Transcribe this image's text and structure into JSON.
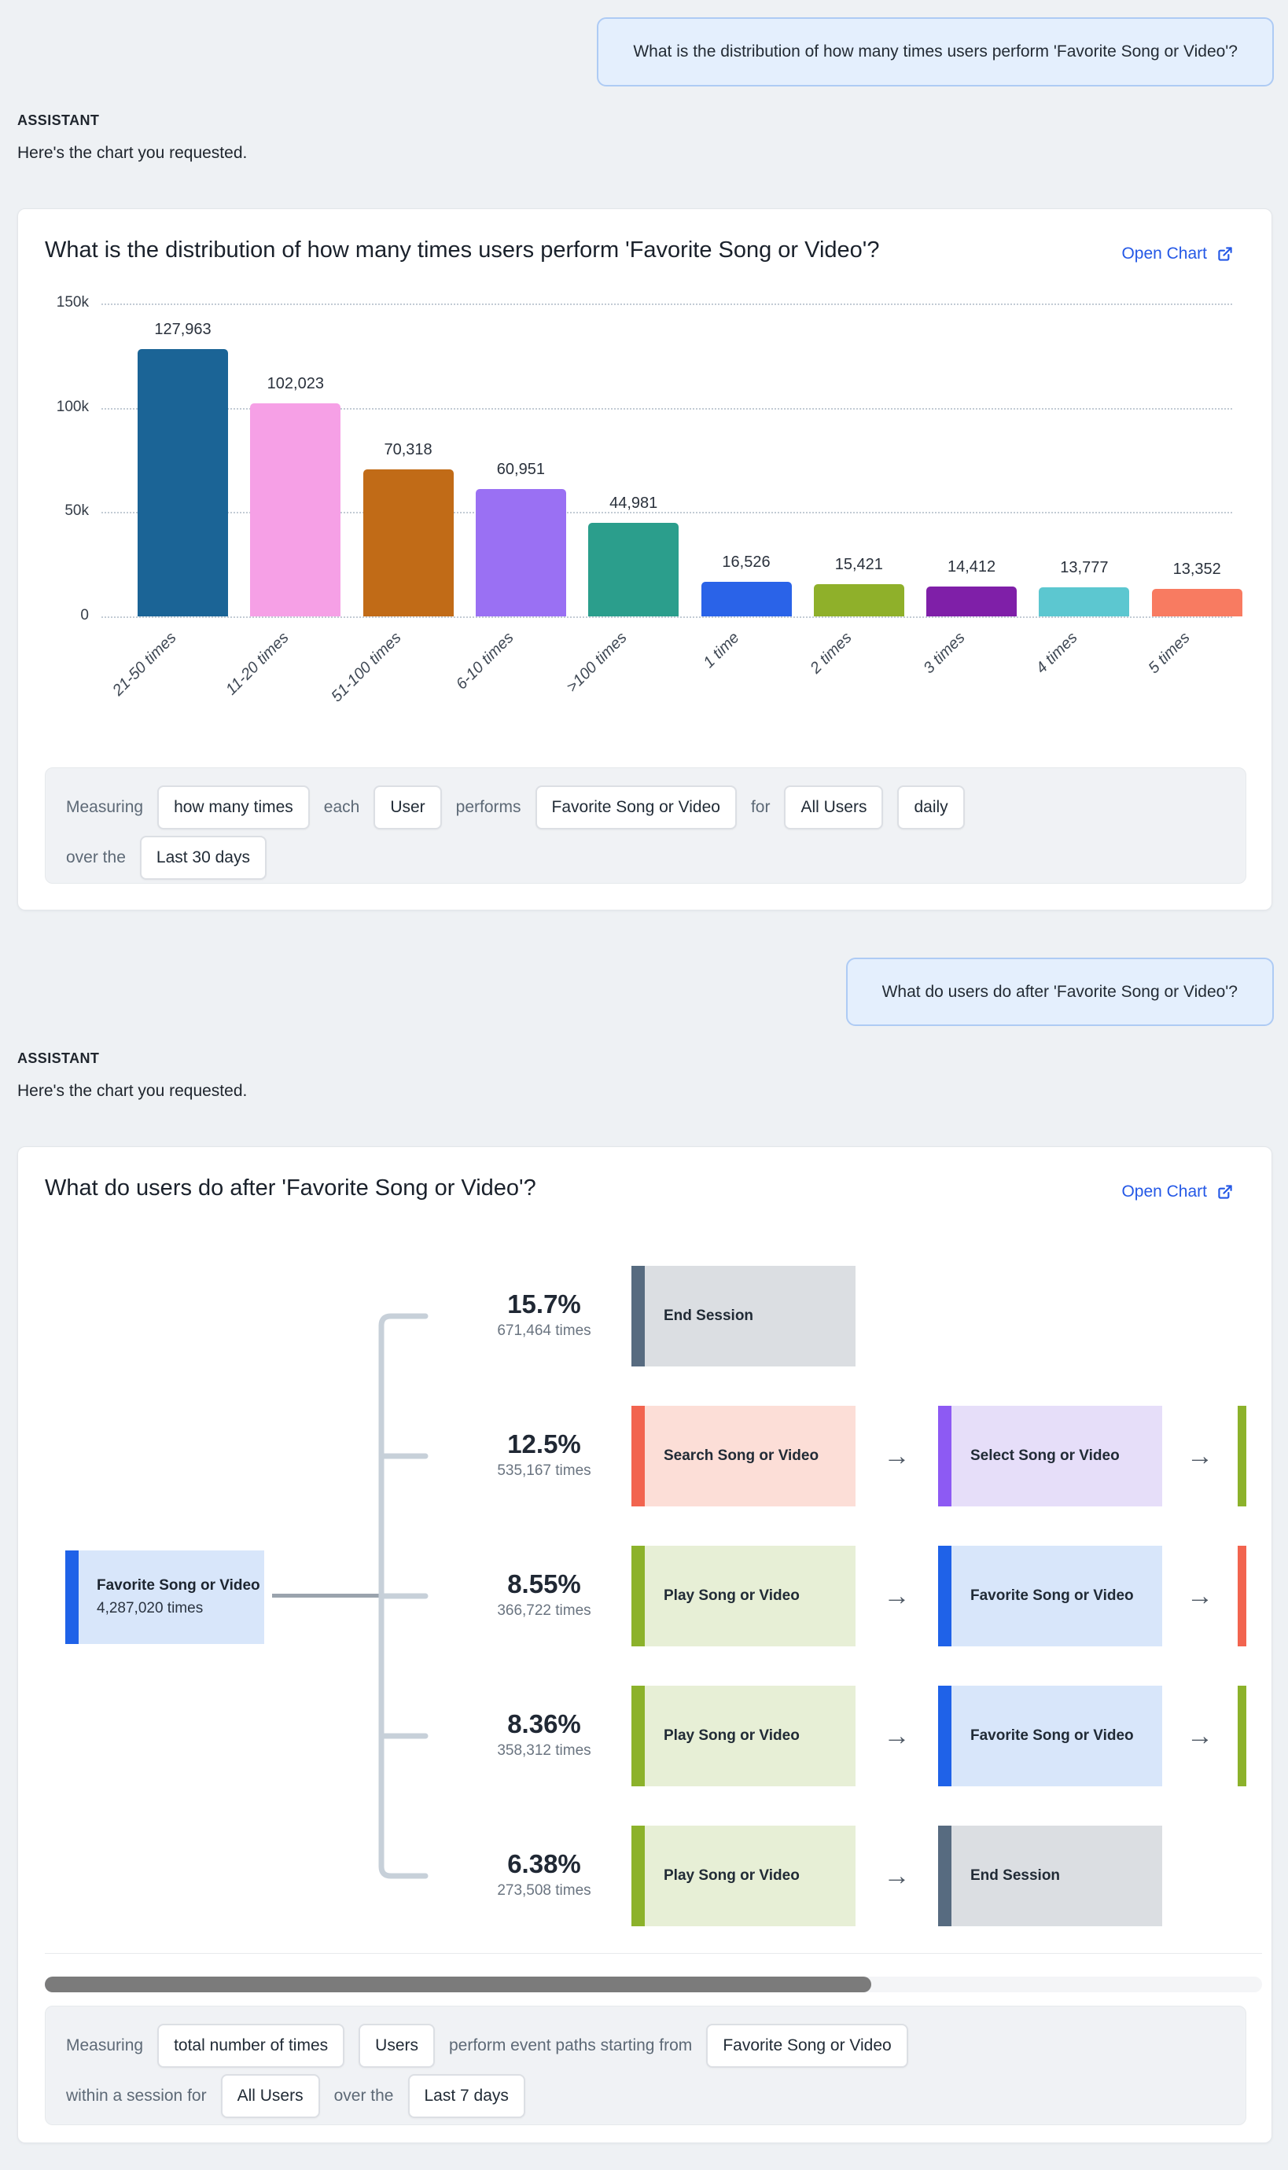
{
  "conversation": {
    "assistant_label": "ASSISTANT",
    "assistant_intro": "Here's the chart you requested.",
    "question_1": "What is the distribution of how many times users perform 'Favorite Song or Video'?",
    "question_2": "What do users do after 'Favorite Song or Video'?"
  },
  "cards": [
    {
      "title": "What is the distribution of how many times users perform 'Favorite Song or Video'?",
      "open_chart_label": "Open Chart",
      "measuring_lines": [
        [
          {
            "kind": "text",
            "value": "Measuring"
          },
          {
            "kind": "chip",
            "value": "how many times"
          },
          {
            "kind": "text",
            "value": "each"
          },
          {
            "kind": "chip",
            "value": "User"
          },
          {
            "kind": "text",
            "value": "performs"
          },
          {
            "kind": "chip",
            "value": "Favorite Song or Video"
          },
          {
            "kind": "text",
            "value": "for"
          },
          {
            "kind": "chip",
            "value": "All Users"
          },
          {
            "kind": "chip",
            "value": "daily"
          }
        ],
        [
          {
            "kind": "text",
            "value": "over the"
          },
          {
            "kind": "chip",
            "value": "Last 30 days"
          }
        ]
      ]
    },
    {
      "title": "What do users do after 'Favorite Song or Video'?",
      "open_chart_label": "Open Chart",
      "measuring_lines": [
        [
          {
            "kind": "text",
            "value": "Measuring"
          },
          {
            "kind": "chip",
            "value": "total number of times"
          },
          {
            "kind": "chip",
            "value": "Users"
          },
          {
            "kind": "text",
            "value": "perform event paths starting from"
          },
          {
            "kind": "chip",
            "value": "Favorite Song or Video"
          }
        ],
        [
          {
            "kind": "text",
            "value": "within a session for"
          },
          {
            "kind": "chip",
            "value": "All Users"
          },
          {
            "kind": "text",
            "value": "over the"
          },
          {
            "kind": "chip",
            "value": "Last 7 days"
          }
        ]
      ]
    }
  ],
  "chart_data": [
    {
      "type": "bar",
      "title": "What is the distribution of how many times users perform 'Favorite Song or Video'?",
      "categories": [
        "21-50 times",
        "11-20 times",
        "51-100 times",
        "6-10 times",
        ">100 times",
        "1 time",
        "2 times",
        "3 times",
        "4 times",
        "5 times"
      ],
      "values": [
        127963,
        102023,
        70318,
        60951,
        44981,
        16526,
        15421,
        14412,
        13777,
        13352
      ],
      "value_labels": [
        "127,963",
        "102,023",
        "70,318",
        "60,951",
        "44,981",
        "16,526",
        "15,421",
        "14,412",
        "13,777",
        "13,352"
      ],
      "bar_colors": [
        "#1b6496",
        "#f6a0e6",
        "#c16b17",
        "#9a70f3",
        "#2b9e8c",
        "#2a63e8",
        "#8fb02a",
        "#7f1fa8",
        "#5cc7d0",
        "#f87b61"
      ],
      "xlabel": "",
      "ylabel": "",
      "ylim": [
        0,
        150000
      ],
      "yticks": [
        {
          "value": 0,
          "label": "0"
        },
        {
          "value": 50000,
          "label": "50k"
        },
        {
          "value": 100000,
          "label": "100k"
        },
        {
          "value": 150000,
          "label": "150k"
        }
      ],
      "grid": "dotted-horizontal",
      "legend": "none"
    },
    {
      "type": "path",
      "title": "What do users do after 'Favorite Song or Video'?",
      "root": {
        "label": "Favorite Song or Video",
        "count_label": "4,287,020 times",
        "scheme": "blue"
      },
      "rows": [
        {
          "percent": "15.7%",
          "count_label": "671,464 times",
          "steps": [
            {
              "label": "End Session",
              "scheme": "gray"
            }
          ],
          "truncated": null
        },
        {
          "percent": "12.5%",
          "count_label": "535,167 times",
          "steps": [
            {
              "label": "Search Song or Video",
              "scheme": "coral"
            },
            {
              "label": "Select Song or Video",
              "scheme": "purple"
            }
          ],
          "truncated": "olive"
        },
        {
          "percent": "8.55%",
          "count_label": "366,722 times",
          "steps": [
            {
              "label": "Play Song or Video",
              "scheme": "olive"
            },
            {
              "label": "Favorite Song or Video",
              "scheme": "blue"
            }
          ],
          "truncated": "coral"
        },
        {
          "percent": "8.36%",
          "count_label": "358,312 times",
          "steps": [
            {
              "label": "Play Song or Video",
              "scheme": "olive"
            },
            {
              "label": "Favorite Song or Video",
              "scheme": "blue"
            }
          ],
          "truncated": "olive"
        },
        {
          "percent": "6.38%",
          "count_label": "273,508 times",
          "steps": [
            {
              "label": "Play Song or Video",
              "scheme": "olive"
            },
            {
              "label": "End Session",
              "scheme": "gray"
            }
          ],
          "truncated": null
        }
      ],
      "schemes": {
        "blue": {
          "bar": "#1f62e8",
          "fill": "#d8e6fa"
        },
        "gray": {
          "bar": "#576b80",
          "fill": "#dbdee2"
        },
        "coral": {
          "bar": "#f2644f",
          "fill": "#fcded7"
        },
        "purple": {
          "bar": "#8d5af3",
          "fill": "#e6def9"
        },
        "olive": {
          "bar": "#8cb22b",
          "fill": "#e7efd6"
        }
      },
      "arrow_glyph": "→"
    }
  ]
}
